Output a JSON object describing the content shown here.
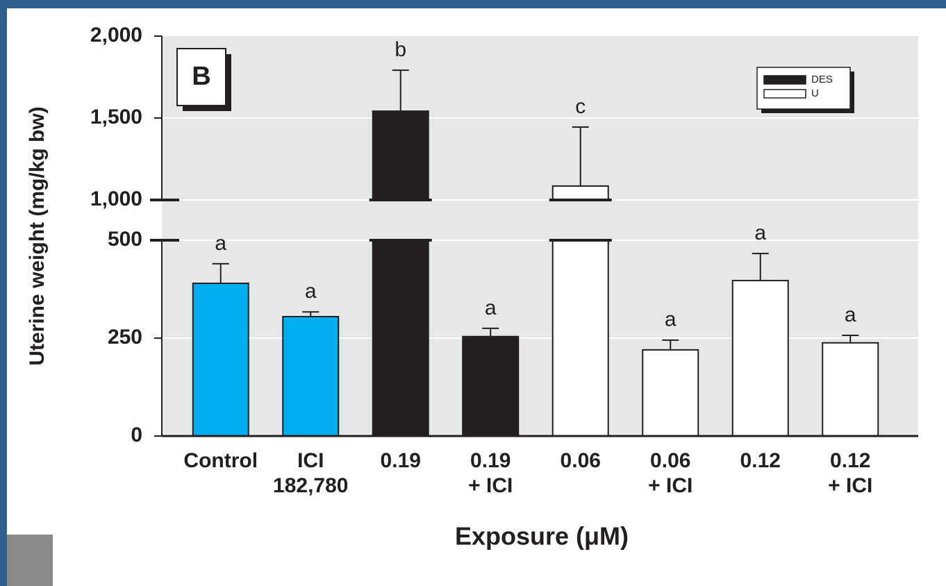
{
  "chart_data": {
    "type": "bar",
    "panel_label": "B",
    "y_label": "Uterine weight (mg/kg bw)",
    "x_label": "Exposure (μM)",
    "categories": [
      [
        "Control"
      ],
      [
        "ICI",
        "182,780"
      ],
      [
        "0.19"
      ],
      [
        "0.19",
        "+ ICI"
      ],
      [
        "0.06"
      ],
      [
        "0.06",
        "+ ICI"
      ],
      [
        "0.12"
      ],
      [
        "0.12",
        "+ ICI"
      ]
    ],
    "series": [
      {
        "color": "#00aeef",
        "values": [
          390,
          305,
          null,
          null,
          null,
          null,
          null,
          null
        ],
        "errors": [
          50,
          12,
          null,
          null,
          null,
          null,
          null,
          null
        ]
      },
      {
        "name": "DES",
        "color": "#231f20",
        "values": [
          null,
          null,
          1542,
          254,
          null,
          null,
          null,
          null
        ],
        "errors": [
          null,
          null,
          250,
          21,
          null,
          null,
          null,
          null
        ]
      },
      {
        "name": "U",
        "color": "#ffffff",
        "values": [
          null,
          null,
          null,
          null,
          1085,
          220,
          397,
          238
        ],
        "errors": [
          null,
          null,
          null,
          null,
          360,
          25,
          69,
          19
        ]
      }
    ],
    "annotations": [
      "a",
      "a",
      "b",
      "a",
      "c",
      "a",
      "a",
      "a"
    ],
    "ylim": [
      0,
      2000
    ],
    "axis_break": [
      500,
      1000
    ],
    "yticks": [
      0,
      250,
      {
        "value": 500,
        "label": "500"
      },
      {
        "value": 1000,
        "label": "1,000"
      },
      {
        "value": 1500,
        "label": "1,500"
      },
      {
        "value": 2000,
        "label": "2,000"
      }
    ],
    "grid": true
  }
}
